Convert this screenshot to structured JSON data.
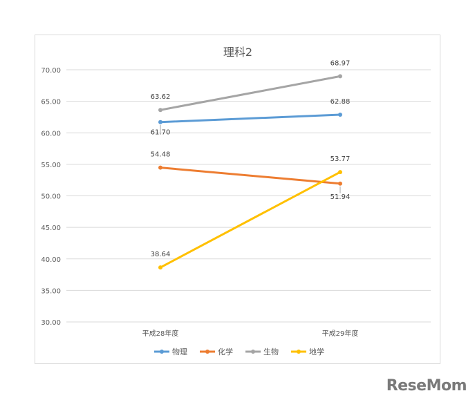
{
  "chart_data": {
    "type": "line",
    "title": "理科2",
    "categories": [
      "平成28年度",
      "平成29年度"
    ],
    "ylim": [
      30,
      70
    ],
    "yticks": [
      "30.00",
      "35.00",
      "40.00",
      "45.00",
      "50.00",
      "55.00",
      "60.00",
      "65.00",
      "70.00"
    ],
    "grid": true,
    "legend_position": "bottom",
    "series": [
      {
        "name": "物理",
        "color": "#5b9bd5",
        "values": [
          61.7,
          62.88
        ],
        "labels": [
          "61.70",
          "62.88"
        ]
      },
      {
        "name": "化学",
        "color": "#ed7d31",
        "values": [
          54.48,
          51.94
        ],
        "labels": [
          "54.48",
          "51.94"
        ]
      },
      {
        "name": "生物",
        "color": "#a5a5a5",
        "values": [
          63.62,
          68.97
        ],
        "labels": [
          "63.62",
          "68.97"
        ]
      },
      {
        "name": "地学",
        "color": "#ffc000",
        "values": [
          38.64,
          53.77
        ],
        "labels": [
          "38.64",
          "53.77"
        ]
      }
    ]
  },
  "watermark": {
    "text": "ReseMom"
  }
}
